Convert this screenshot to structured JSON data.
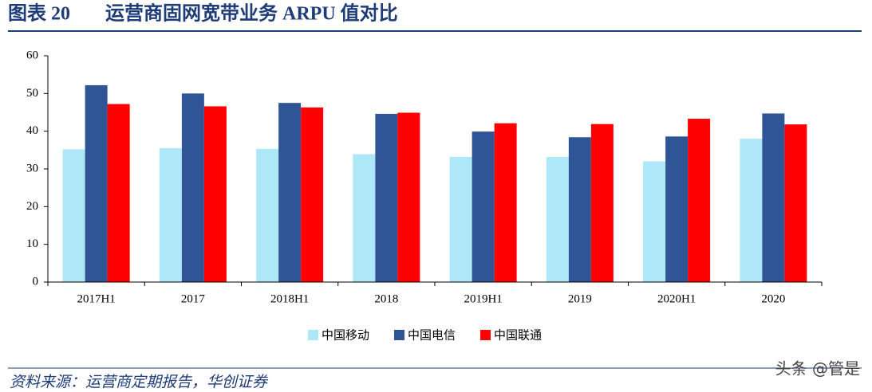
{
  "figure_label": "图表 20",
  "source": "资料来源：运营商定期报告，华创证券",
  "watermark": "头条 @管是",
  "chart_data": {
    "type": "bar",
    "title": "运营商固网宽带业务 ARPU 值对比",
    "categories": [
      "2017H1",
      "2017",
      "2018H1",
      "2018",
      "2019H1",
      "2019",
      "2020H1",
      "2020"
    ],
    "series": [
      {
        "name": "中国移动",
        "color": "#aee8f8",
        "values": [
          35.2,
          35.5,
          35.3,
          33.9,
          33.2,
          33.2,
          32.0,
          38.0
        ]
      },
      {
        "name": "中国电信",
        "color": "#2f5597",
        "values": [
          52.2,
          50.0,
          47.5,
          44.6,
          39.9,
          38.4,
          38.6,
          44.7
        ]
      },
      {
        "name": "中国联通",
        "color": "#ff0000",
        "values": [
          47.2,
          46.6,
          46.3,
          44.9,
          42.1,
          41.9,
          43.3,
          41.8
        ]
      }
    ],
    "ylim": [
      0,
      60
    ],
    "yticks": [
      0,
      10,
      20,
      30,
      40,
      50,
      60
    ],
    "grid": false,
    "legend": "bottom"
  }
}
